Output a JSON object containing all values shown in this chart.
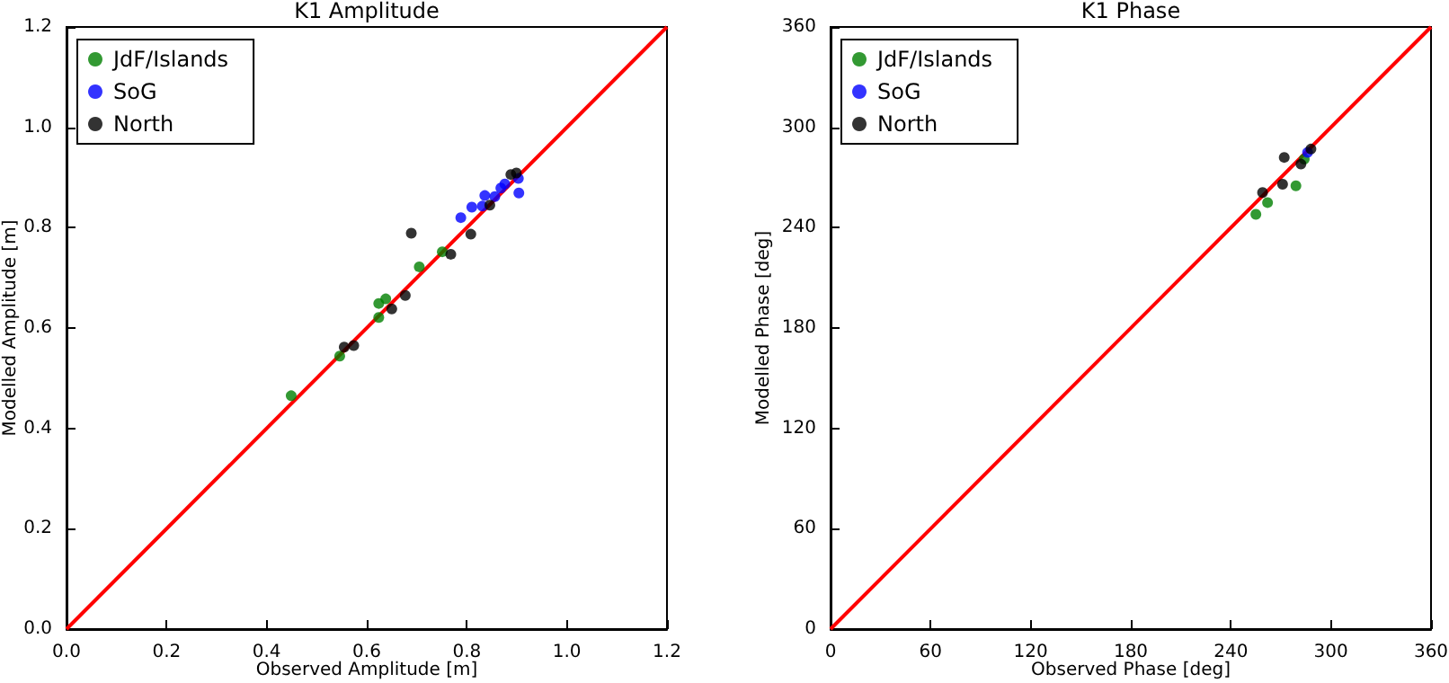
{
  "chart_data": [
    {
      "type": "scatter",
      "title": "K1 Amplitude",
      "xlabel": "Observed Amplitude [m]",
      "ylabel": "Modelled Amplitude [m]",
      "xlim": [
        0,
        1.2
      ],
      "ylim": [
        0,
        1.2
      ],
      "xticks": [
        {
          "value": 0,
          "label": "0.0"
        },
        {
          "value": 0.2,
          "label": "0.2"
        },
        {
          "value": 0.4,
          "label": "0.4"
        },
        {
          "value": 0.6,
          "label": "0.6"
        },
        {
          "value": 0.8,
          "label": "0.8"
        },
        {
          "value": 1,
          "label": "1.0"
        },
        {
          "value": 1.2,
          "label": "1.2"
        }
      ],
      "yticks": [
        {
          "value": 0,
          "label": "0.0"
        },
        {
          "value": 0.2,
          "label": "0.2"
        },
        {
          "value": 0.4,
          "label": "0.4"
        },
        {
          "value": 0.6,
          "label": "0.6"
        },
        {
          "value": 0.8,
          "label": "0.8"
        },
        {
          "value": 1,
          "label": "1.0"
        },
        {
          "value": 1.2,
          "label": "1.2"
        }
      ],
      "grid": false,
      "legend": "top left",
      "marker": "circle",
      "series": [
        {
          "name": "JdF/Islands",
          "color": "#008000",
          "x": [
            0.449,
            0.546,
            0.624,
            0.624,
            0.638,
            0.705,
            0.751
          ],
          "values": [
            0.465,
            0.544,
            0.621,
            0.649,
            0.658,
            0.722,
            0.752
          ]
        },
        {
          "name": "SoG",
          "color": "#0000ff",
          "x": [
            0.788,
            0.81,
            0.831,
            0.836,
            0.856,
            0.868,
            0.876,
            0.903,
            0.904
          ],
          "values": [
            0.82,
            0.841,
            0.843,
            0.864,
            0.862,
            0.879,
            0.887,
            0.898,
            0.869
          ]
        },
        {
          "name": "North",
          "color": "#000000",
          "x": [
            0.555,
            0.574,
            0.65,
            0.677,
            0.689,
            0.768,
            0.808,
            0.846,
            0.888,
            0.899
          ],
          "values": [
            0.562,
            0.565,
            0.638,
            0.665,
            0.789,
            0.747,
            0.787,
            0.845,
            0.906,
            0.909
          ]
        },
        {
          "type": "line",
          "marker": "none",
          "color": "#ff0000",
          "x": [
            0,
            1.2
          ],
          "values": [
            0,
            1.2
          ]
        }
      ]
    },
    {
      "type": "scatter",
      "title": "K1 Phase",
      "xlabel": "Observed Phase [deg]",
      "ylabel": "Modelled Phase [deg]",
      "xlim": [
        0,
        360
      ],
      "ylim": [
        0,
        360
      ],
      "xticks": [
        0,
        60,
        120,
        180,
        240,
        300,
        360
      ],
      "yticks": [
        0,
        60,
        120,
        180,
        240,
        300,
        360
      ],
      "grid": false,
      "legend": "top left",
      "marker": "circle",
      "series": [
        {
          "name": "JdF/Islands",
          "color": "#008000",
          "x": [
            255,
            262,
            279,
            284
          ],
          "values": [
            248,
            255,
            265,
            281
          ]
        },
        {
          "name": "SoG",
          "color": "#0000ff",
          "x": [
            286
          ],
          "values": [
            285
          ]
        },
        {
          "name": "North",
          "color": "#000000",
          "x": [
            259,
            272,
            271,
            282,
            288
          ],
          "values": [
            261,
            282,
            266,
            278,
            287
          ]
        },
        {
          "type": "line",
          "marker": "none",
          "color": "#ff0000",
          "x": [
            0,
            360
          ],
          "values": [
            0,
            360
          ]
        }
      ]
    }
  ]
}
